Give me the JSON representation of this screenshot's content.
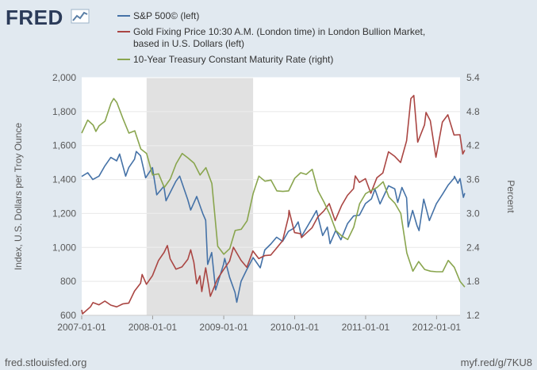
{
  "brand": {
    "logo_text": "FRED",
    "source_url": "fred.stlouisfed.org",
    "short_url": "myf.red/g/7KU8"
  },
  "chart_data": {
    "type": "line",
    "legend_position": "top",
    "left_axis": {
      "label": "Index, U.S. Dollars per Troy Ounce",
      "ylim": [
        600,
        2000
      ],
      "ticks": [
        "600",
        "800",
        "1,000",
        "1,200",
        "1,400",
        "1,600",
        "1,800",
        "2,000"
      ]
    },
    "right_axis": {
      "label": "Percent",
      "ylim": [
        1.2,
        5.4
      ],
      "ticks": [
        "1.2",
        "1.8",
        "2.4",
        "3.0",
        "3.6",
        "4.2",
        "4.8",
        "5.4"
      ]
    },
    "x_axis": {
      "range": [
        "2007-01-01",
        "2012-05-01"
      ],
      "ticks": [
        "2007-01-01",
        "2008-01-01",
        "2009-01-01",
        "2010-01-01",
        "2011-01-01",
        "2012-01-01"
      ]
    },
    "recession": {
      "start": "2007-12-01",
      "end": "2009-06-01",
      "color": "#e1e1e1"
    },
    "grid": "horizontal",
    "series": [
      {
        "name": "S&P 500© (left)",
        "axis": "left",
        "color": "#4572a7",
        "points": [
          [
            "2007-01-01",
            1418
          ],
          [
            "2007-02-01",
            1440
          ],
          [
            "2007-02-27",
            1400
          ],
          [
            "2007-03-31",
            1420
          ],
          [
            "2007-04-30",
            1480
          ],
          [
            "2007-05-31",
            1530
          ],
          [
            "2007-06-30",
            1510
          ],
          [
            "2007-07-15",
            1550
          ],
          [
            "2007-08-15",
            1420
          ],
          [
            "2007-08-31",
            1470
          ],
          [
            "2007-09-30",
            1520
          ],
          [
            "2007-10-09",
            1565
          ],
          [
            "2007-10-31",
            1540
          ],
          [
            "2007-11-26",
            1410
          ],
          [
            "2007-12-31",
            1470
          ],
          [
            "2008-01-22",
            1310
          ],
          [
            "2008-02-28",
            1360
          ],
          [
            "2008-03-10",
            1275
          ],
          [
            "2008-04-30",
            1390
          ],
          [
            "2008-05-19",
            1420
          ],
          [
            "2008-06-30",
            1280
          ],
          [
            "2008-07-15",
            1220
          ],
          [
            "2008-08-15",
            1300
          ],
          [
            "2008-09-15",
            1200
          ],
          [
            "2008-09-30",
            1160
          ],
          [
            "2008-10-10",
            900
          ],
          [
            "2008-10-31",
            970
          ],
          [
            "2008-11-20",
            750
          ],
          [
            "2008-12-31",
            900
          ],
          [
            "2009-01-06",
            935
          ],
          [
            "2009-01-31",
            825
          ],
          [
            "2009-02-28",
            735
          ],
          [
            "2009-03-09",
            677
          ],
          [
            "2009-03-31",
            800
          ],
          [
            "2009-04-30",
            870
          ],
          [
            "2009-06-01",
            940
          ],
          [
            "2009-07-08",
            880
          ],
          [
            "2009-07-31",
            985
          ],
          [
            "2009-08-31",
            1020
          ],
          [
            "2009-09-30",
            1060
          ],
          [
            "2009-10-31",
            1036
          ],
          [
            "2009-11-30",
            1095
          ],
          [
            "2009-12-31",
            1115
          ],
          [
            "2010-01-19",
            1150
          ],
          [
            "2010-02-05",
            1065
          ],
          [
            "2010-03-31",
            1170
          ],
          [
            "2010-04-23",
            1217
          ],
          [
            "2010-05-25",
            1070
          ],
          [
            "2010-06-18",
            1120
          ],
          [
            "2010-07-02",
            1022
          ],
          [
            "2010-07-31",
            1100
          ],
          [
            "2010-08-27",
            1045
          ],
          [
            "2010-09-30",
            1140
          ],
          [
            "2010-10-31",
            1185
          ],
          [
            "2010-11-30",
            1190
          ],
          [
            "2010-12-31",
            1258
          ],
          [
            "2011-01-31",
            1286
          ],
          [
            "2011-02-18",
            1343
          ],
          [
            "2011-03-16",
            1256
          ],
          [
            "2011-04-29",
            1363
          ],
          [
            "2011-05-31",
            1345
          ],
          [
            "2011-06-15",
            1265
          ],
          [
            "2011-07-07",
            1353
          ],
          [
            "2011-07-31",
            1292
          ],
          [
            "2011-08-08",
            1120
          ],
          [
            "2011-08-31",
            1218
          ],
          [
            "2011-09-22",
            1130
          ],
          [
            "2011-10-03",
            1099
          ],
          [
            "2011-10-27",
            1284
          ],
          [
            "2011-11-25",
            1158
          ],
          [
            "2011-12-31",
            1257
          ],
          [
            "2012-01-31",
            1312
          ],
          [
            "2012-02-29",
            1366
          ],
          [
            "2012-03-31",
            1408
          ],
          [
            "2012-04-02",
            1419
          ],
          [
            "2012-04-20",
            1378
          ],
          [
            "2012-05-01",
            1405
          ],
          [
            "2012-05-18",
            1295
          ],
          [
            "2012-05-25",
            1320
          ]
        ]
      },
      {
        "name": "Gold Fixing Price 10:30 A.M. (London time) in London Bullion Market, based in U.S. Dollars (left)",
        "axis": "left",
        "color": "#aa4643",
        "points": [
          [
            "2007-01-01",
            632
          ],
          [
            "2007-01-05",
            609
          ],
          [
            "2007-02-15",
            650
          ],
          [
            "2007-02-28",
            675
          ],
          [
            "2007-03-31",
            662
          ],
          [
            "2007-04-30",
            684
          ],
          [
            "2007-05-31",
            660
          ],
          [
            "2007-06-30",
            650
          ],
          [
            "2007-07-31",
            667
          ],
          [
            "2007-08-31",
            672
          ],
          [
            "2007-09-30",
            743
          ],
          [
            "2007-10-31",
            789
          ],
          [
            "2007-11-08",
            841
          ],
          [
            "2007-11-30",
            783
          ],
          [
            "2007-12-31",
            834
          ],
          [
            "2008-01-31",
            923
          ],
          [
            "2008-02-29",
            971
          ],
          [
            "2008-03-17",
            1011
          ],
          [
            "2008-03-31",
            933
          ],
          [
            "2008-04-30",
            872
          ],
          [
            "2008-05-31",
            885
          ],
          [
            "2008-06-30",
            930
          ],
          [
            "2008-07-15",
            986
          ],
          [
            "2008-07-31",
            912
          ],
          [
            "2008-08-15",
            786
          ],
          [
            "2008-08-31",
            833
          ],
          [
            "2008-09-10",
            740
          ],
          [
            "2008-09-30",
            880
          ],
          [
            "2008-10-24",
            712
          ],
          [
            "2008-11-30",
            814
          ],
          [
            "2008-12-31",
            869
          ],
          [
            "2009-01-31",
            919
          ],
          [
            "2009-02-20",
            1001
          ],
          [
            "2009-03-31",
            924
          ],
          [
            "2009-04-30",
            883
          ],
          [
            "2009-05-31",
            979
          ],
          [
            "2009-06-30",
            934
          ],
          [
            "2009-07-31",
            952
          ],
          [
            "2009-08-31",
            955
          ],
          [
            "2009-09-30",
            996
          ],
          [
            "2009-10-31",
            1040
          ],
          [
            "2009-11-30",
            1180
          ],
          [
            "2009-12-03",
            1218
          ],
          [
            "2009-12-31",
            1087
          ],
          [
            "2010-01-31",
            1081
          ],
          [
            "2010-02-05",
            1058
          ],
          [
            "2010-03-31",
            1115
          ],
          [
            "2010-04-30",
            1180
          ],
          [
            "2010-05-31",
            1215
          ],
          [
            "2010-06-28",
            1258
          ],
          [
            "2010-07-28",
            1158
          ],
          [
            "2010-08-31",
            1248
          ],
          [
            "2010-09-30",
            1307
          ],
          [
            "2010-10-31",
            1346
          ],
          [
            "2010-11-09",
            1421
          ],
          [
            "2010-11-30",
            1383
          ],
          [
            "2010-12-31",
            1405
          ],
          [
            "2011-01-28",
            1319
          ],
          [
            "2011-02-28",
            1410
          ],
          [
            "2011-03-31",
            1439
          ],
          [
            "2011-04-29",
            1563
          ],
          [
            "2011-05-31",
            1536
          ],
          [
            "2011-06-30",
            1500
          ],
          [
            "2011-07-31",
            1628
          ],
          [
            "2011-08-22",
            1877
          ],
          [
            "2011-09-06",
            1895
          ],
          [
            "2011-09-26",
            1620
          ],
          [
            "2011-10-31",
            1722
          ],
          [
            "2011-11-08",
            1795
          ],
          [
            "2011-11-30",
            1746
          ],
          [
            "2011-12-29",
            1531
          ],
          [
            "2012-01-31",
            1738
          ],
          [
            "2012-02-28",
            1781
          ],
          [
            "2012-03-31",
            1662
          ],
          [
            "2012-04-30",
            1664
          ],
          [
            "2012-05-15",
            1550
          ],
          [
            "2012-05-25",
            1573
          ]
        ]
      },
      {
        "name": "10-Year Treasury Constant Maturity Rate (right)",
        "axis": "right",
        "color": "#89a54e",
        "points": [
          [
            "2007-01-01",
            4.42
          ],
          [
            "2007-02-01",
            4.65
          ],
          [
            "2007-03-01",
            4.56
          ],
          [
            "2007-03-15",
            4.45
          ],
          [
            "2007-04-01",
            4.55
          ],
          [
            "2007-05-01",
            4.63
          ],
          [
            "2007-06-01",
            4.95
          ],
          [
            "2007-06-15",
            5.03
          ],
          [
            "2007-07-01",
            4.96
          ],
          [
            "2007-08-01",
            4.68
          ],
          [
            "2007-09-01",
            4.42
          ],
          [
            "2007-10-01",
            4.46
          ],
          [
            "2007-11-01",
            4.14
          ],
          [
            "2007-12-01",
            4.06
          ],
          [
            "2008-01-01",
            3.68
          ],
          [
            "2008-02-01",
            3.7
          ],
          [
            "2008-03-01",
            3.46
          ],
          [
            "2008-04-01",
            3.61
          ],
          [
            "2008-05-01",
            3.88
          ],
          [
            "2008-06-01",
            4.06
          ],
          [
            "2008-07-01",
            3.98
          ],
          [
            "2008-08-01",
            3.89
          ],
          [
            "2008-09-01",
            3.68
          ],
          [
            "2008-10-01",
            3.81
          ],
          [
            "2008-11-01",
            3.53
          ],
          [
            "2008-12-01",
            2.42
          ],
          [
            "2009-01-01",
            2.28
          ],
          [
            "2009-02-01",
            2.38
          ],
          [
            "2009-03-01",
            2.7
          ],
          [
            "2009-04-01",
            2.72
          ],
          [
            "2009-05-01",
            2.87
          ],
          [
            "2009-06-01",
            3.35
          ],
          [
            "2009-07-01",
            3.66
          ],
          [
            "2009-08-01",
            3.57
          ],
          [
            "2009-09-01",
            3.59
          ],
          [
            "2009-10-01",
            3.4
          ],
          [
            "2009-11-01",
            3.39
          ],
          [
            "2009-12-01",
            3.4
          ],
          [
            "2010-01-01",
            3.62
          ],
          [
            "2010-02-01",
            3.72
          ],
          [
            "2010-03-01",
            3.69
          ],
          [
            "2010-04-01",
            3.78
          ],
          [
            "2010-05-01",
            3.4
          ],
          [
            "2010-06-01",
            3.2
          ],
          [
            "2010-07-01",
            2.98
          ],
          [
            "2010-08-01",
            2.7
          ],
          [
            "2010-09-01",
            2.6
          ],
          [
            "2010-10-01",
            2.54
          ],
          [
            "2010-11-01",
            2.76
          ],
          [
            "2010-12-01",
            3.17
          ],
          [
            "2011-01-01",
            3.35
          ],
          [
            "2011-02-01",
            3.41
          ],
          [
            "2011-03-01",
            3.46
          ],
          [
            "2011-04-01",
            3.56
          ],
          [
            "2011-05-01",
            3.29
          ],
          [
            "2011-06-01",
            3.18
          ],
          [
            "2011-07-01",
            3.0
          ],
          [
            "2011-08-01",
            2.3
          ],
          [
            "2011-09-01",
            1.98
          ],
          [
            "2011-10-01",
            2.15
          ],
          [
            "2011-11-01",
            2.01
          ],
          [
            "2011-12-01",
            1.98
          ],
          [
            "2012-01-01",
            1.97
          ],
          [
            "2012-02-01",
            1.97
          ],
          [
            "2012-03-01",
            2.17
          ],
          [
            "2012-04-01",
            2.05
          ],
          [
            "2012-05-01",
            1.8
          ],
          [
            "2012-05-25",
            1.7
          ]
        ]
      }
    ]
  }
}
